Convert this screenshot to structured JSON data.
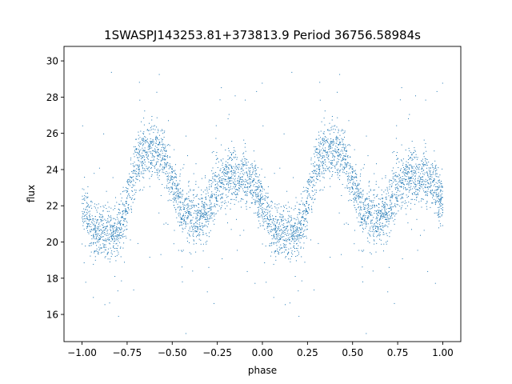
{
  "chart_data": {
    "type": "scatter",
    "title": "1SWASPJ143253.81+373813.9 Period 36756.58984s",
    "xlabel": "phase",
    "ylabel": "flux",
    "xlim": [
      -1.1,
      1.1
    ],
    "ylim": [
      14.5,
      30.8
    ],
    "xticks": [
      -1.0,
      -0.75,
      -0.5,
      -0.25,
      0.0,
      0.25,
      0.5,
      0.75,
      1.0
    ],
    "xtick_labels": [
      "−1.00",
      "−0.75",
      "−0.50",
      "−0.25",
      "0.00",
      "0.25",
      "0.50",
      "0.75",
      "1.00"
    ],
    "yticks": [
      16,
      18,
      20,
      22,
      24,
      26,
      28,
      30
    ],
    "ytick_labels": [
      "16",
      "18",
      "20",
      "22",
      "24",
      "26",
      "28",
      "30"
    ],
    "grid": false,
    "marker_color": "#1f77b4",
    "series": [
      {
        "phase_mirrored": true,
        "light_curve_profile": {
          "phase": [
            0.0,
            0.05,
            0.1,
            0.15,
            0.2,
            0.25,
            0.3,
            0.35,
            0.4,
            0.45,
            0.5,
            0.55,
            0.6,
            0.65,
            0.7,
            0.75,
            0.8,
            0.85,
            0.9,
            0.95,
            1.0
          ],
          "flux": [
            22.0,
            20.8,
            20.6,
            20.5,
            20.6,
            22.0,
            24.3,
            25.0,
            25.0,
            24.8,
            23.3,
            21.8,
            21.5,
            21.3,
            21.8,
            23.0,
            23.6,
            23.7,
            23.5,
            23.2,
            22.0
          ]
        }
      }
    ]
  }
}
